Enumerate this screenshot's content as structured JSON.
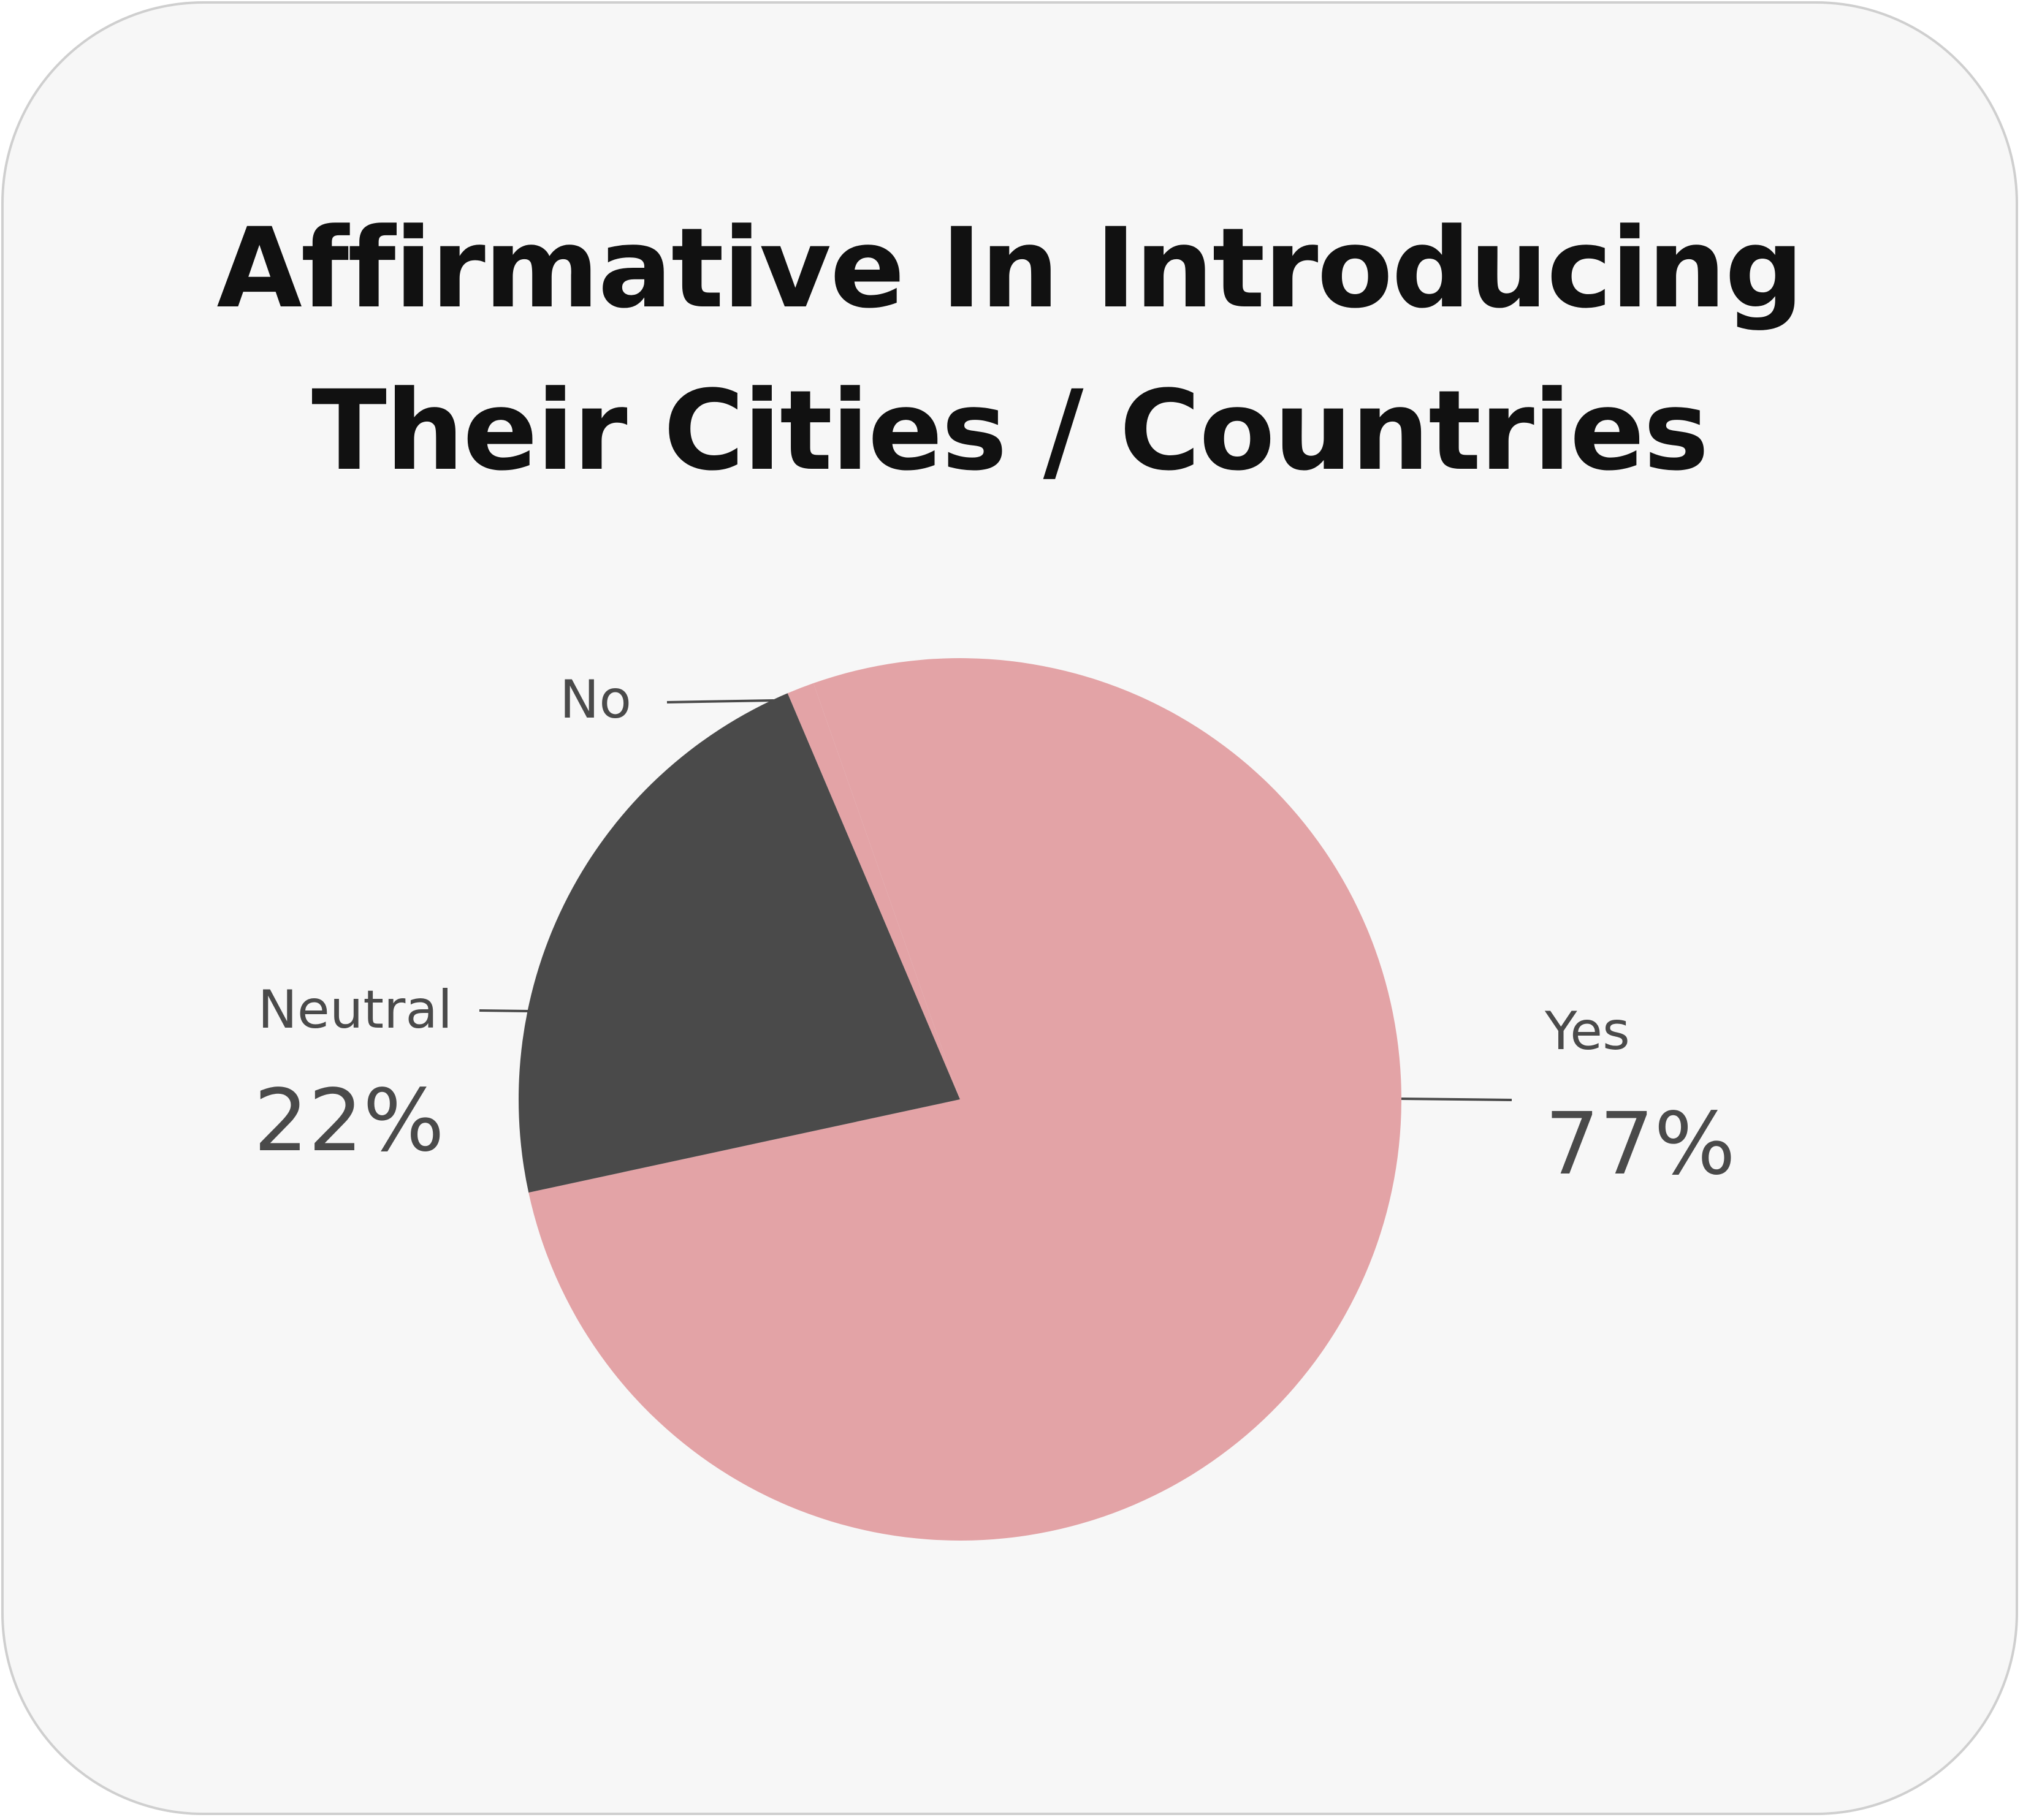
{
  "chart_data": {
    "type": "pie",
    "title_lines": [
      "Affirmative In Introducing",
      "Their Cities / Countries"
    ],
    "slices": [
      {
        "label": "Yes",
        "value": 77,
        "percent_label": "77%",
        "color": "#e3a3a6"
      },
      {
        "label": "Neutral",
        "value": 22,
        "percent_label": "22%",
        "color": "#4a4a4a"
      },
      {
        "label": "No",
        "value": 1,
        "percent_label": "",
        "color": "#e3a3a6"
      }
    ],
    "start_slice": "No",
    "direction": "clockwise"
  }
}
